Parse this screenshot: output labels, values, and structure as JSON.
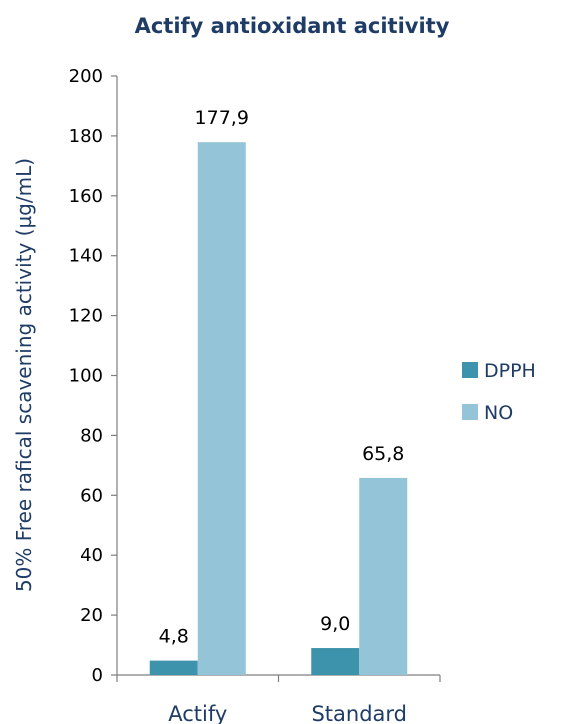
{
  "chart_data": {
    "type": "bar",
    "title": "Actify antioxidant acitivity",
    "ylabel": "50% Free rafical scavening activity (µg/mL)",
    "xlabel": "",
    "categories": [
      "Actify",
      "Standard"
    ],
    "ylim": [
      0,
      200
    ],
    "yticks": [
      0,
      20,
      40,
      60,
      80,
      100,
      120,
      140,
      160,
      180,
      200
    ],
    "series": [
      {
        "name": "DPPH",
        "values": [
          4.8,
          9.0
        ],
        "labels": [
          "4,8",
          "9,0"
        ],
        "color": "#3d93ab"
      },
      {
        "name": "NO",
        "values": [
          177.9,
          65.8
        ],
        "labels": [
          "177,9",
          "65,8"
        ],
        "color": "#93c4d7"
      }
    ],
    "legend_position": "right",
    "grid": false
  }
}
